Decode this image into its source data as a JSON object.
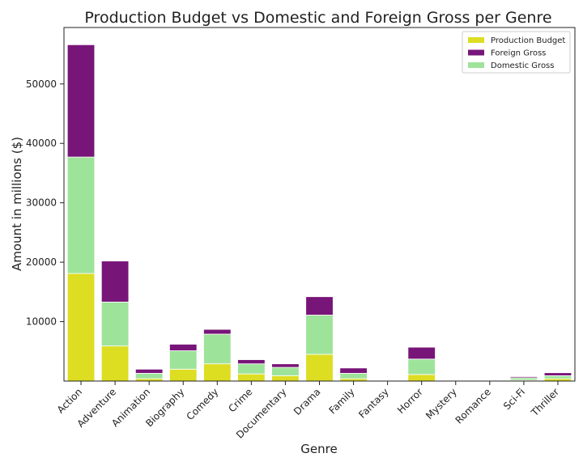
{
  "chart_data": {
    "type": "bar",
    "stacked": true,
    "title": "Production Budget vs Domestic and Foreign Gross per Genre",
    "xlabel": "Genre",
    "ylabel": "Amount in millions ($)",
    "ylim": [
      0,
      59500
    ],
    "yticks": [
      10000,
      20000,
      30000,
      40000,
      50000
    ],
    "grid": false,
    "legend_position": "top-right",
    "categories": [
      "Action",
      "Adventure",
      "Animation",
      "Biography",
      "Comedy",
      "Crime",
      "Documentary",
      "Drama",
      "Family",
      "Fantasy",
      "Horror",
      "Mystery",
      "Romance",
      "Sci-Fi",
      "Thriller"
    ],
    "series": [
      {
        "name": "Production Budget",
        "color": "#dddd22",
        "values": [
          18100,
          5900,
          400,
          2000,
          2900,
          1200,
          900,
          4500,
          400,
          0,
          1100,
          0,
          0,
          150,
          400
        ]
      },
      {
        "name": "Domestic Gross",
        "color": "#9ee39a",
        "values": [
          19600,
          7400,
          900,
          3100,
          5000,
          1700,
          1400,
          6600,
          900,
          0,
          2600,
          0,
          0,
          400,
          500
        ]
      },
      {
        "name": "Foreign Gross",
        "color": "#781579",
        "values": [
          18900,
          6900,
          700,
          1100,
          800,
          700,
          600,
          3100,
          900,
          0,
          2000,
          0,
          0,
          200,
          500
        ]
      }
    ],
    "legend_order": [
      "Production Budget",
      "Foreign Gross",
      "Domestic Gross"
    ]
  }
}
